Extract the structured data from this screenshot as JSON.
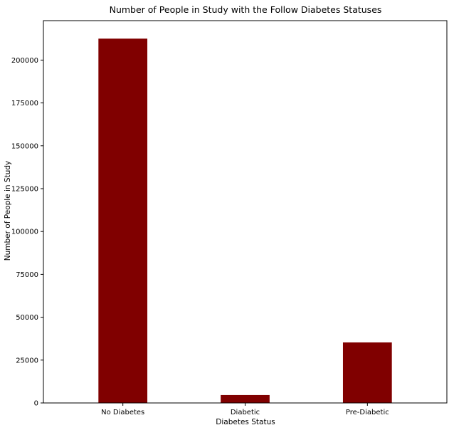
{
  "chart_data": {
    "type": "bar",
    "title": "Number of People in Study with the Follow Diabetes Statuses",
    "xlabel": "Diabetes Status",
    "ylabel": "Number of People in Study",
    "categories": [
      "No Diabetes",
      "Diabetic",
      "Pre-Diabetic"
    ],
    "values": [
      212500,
      4600,
      35300
    ],
    "ylim": [
      0,
      223000
    ],
    "yticks": [
      0,
      25000,
      50000,
      75000,
      100000,
      125000,
      150000,
      175000,
      200000
    ],
    "grid": false,
    "bar_color": "#800000"
  }
}
